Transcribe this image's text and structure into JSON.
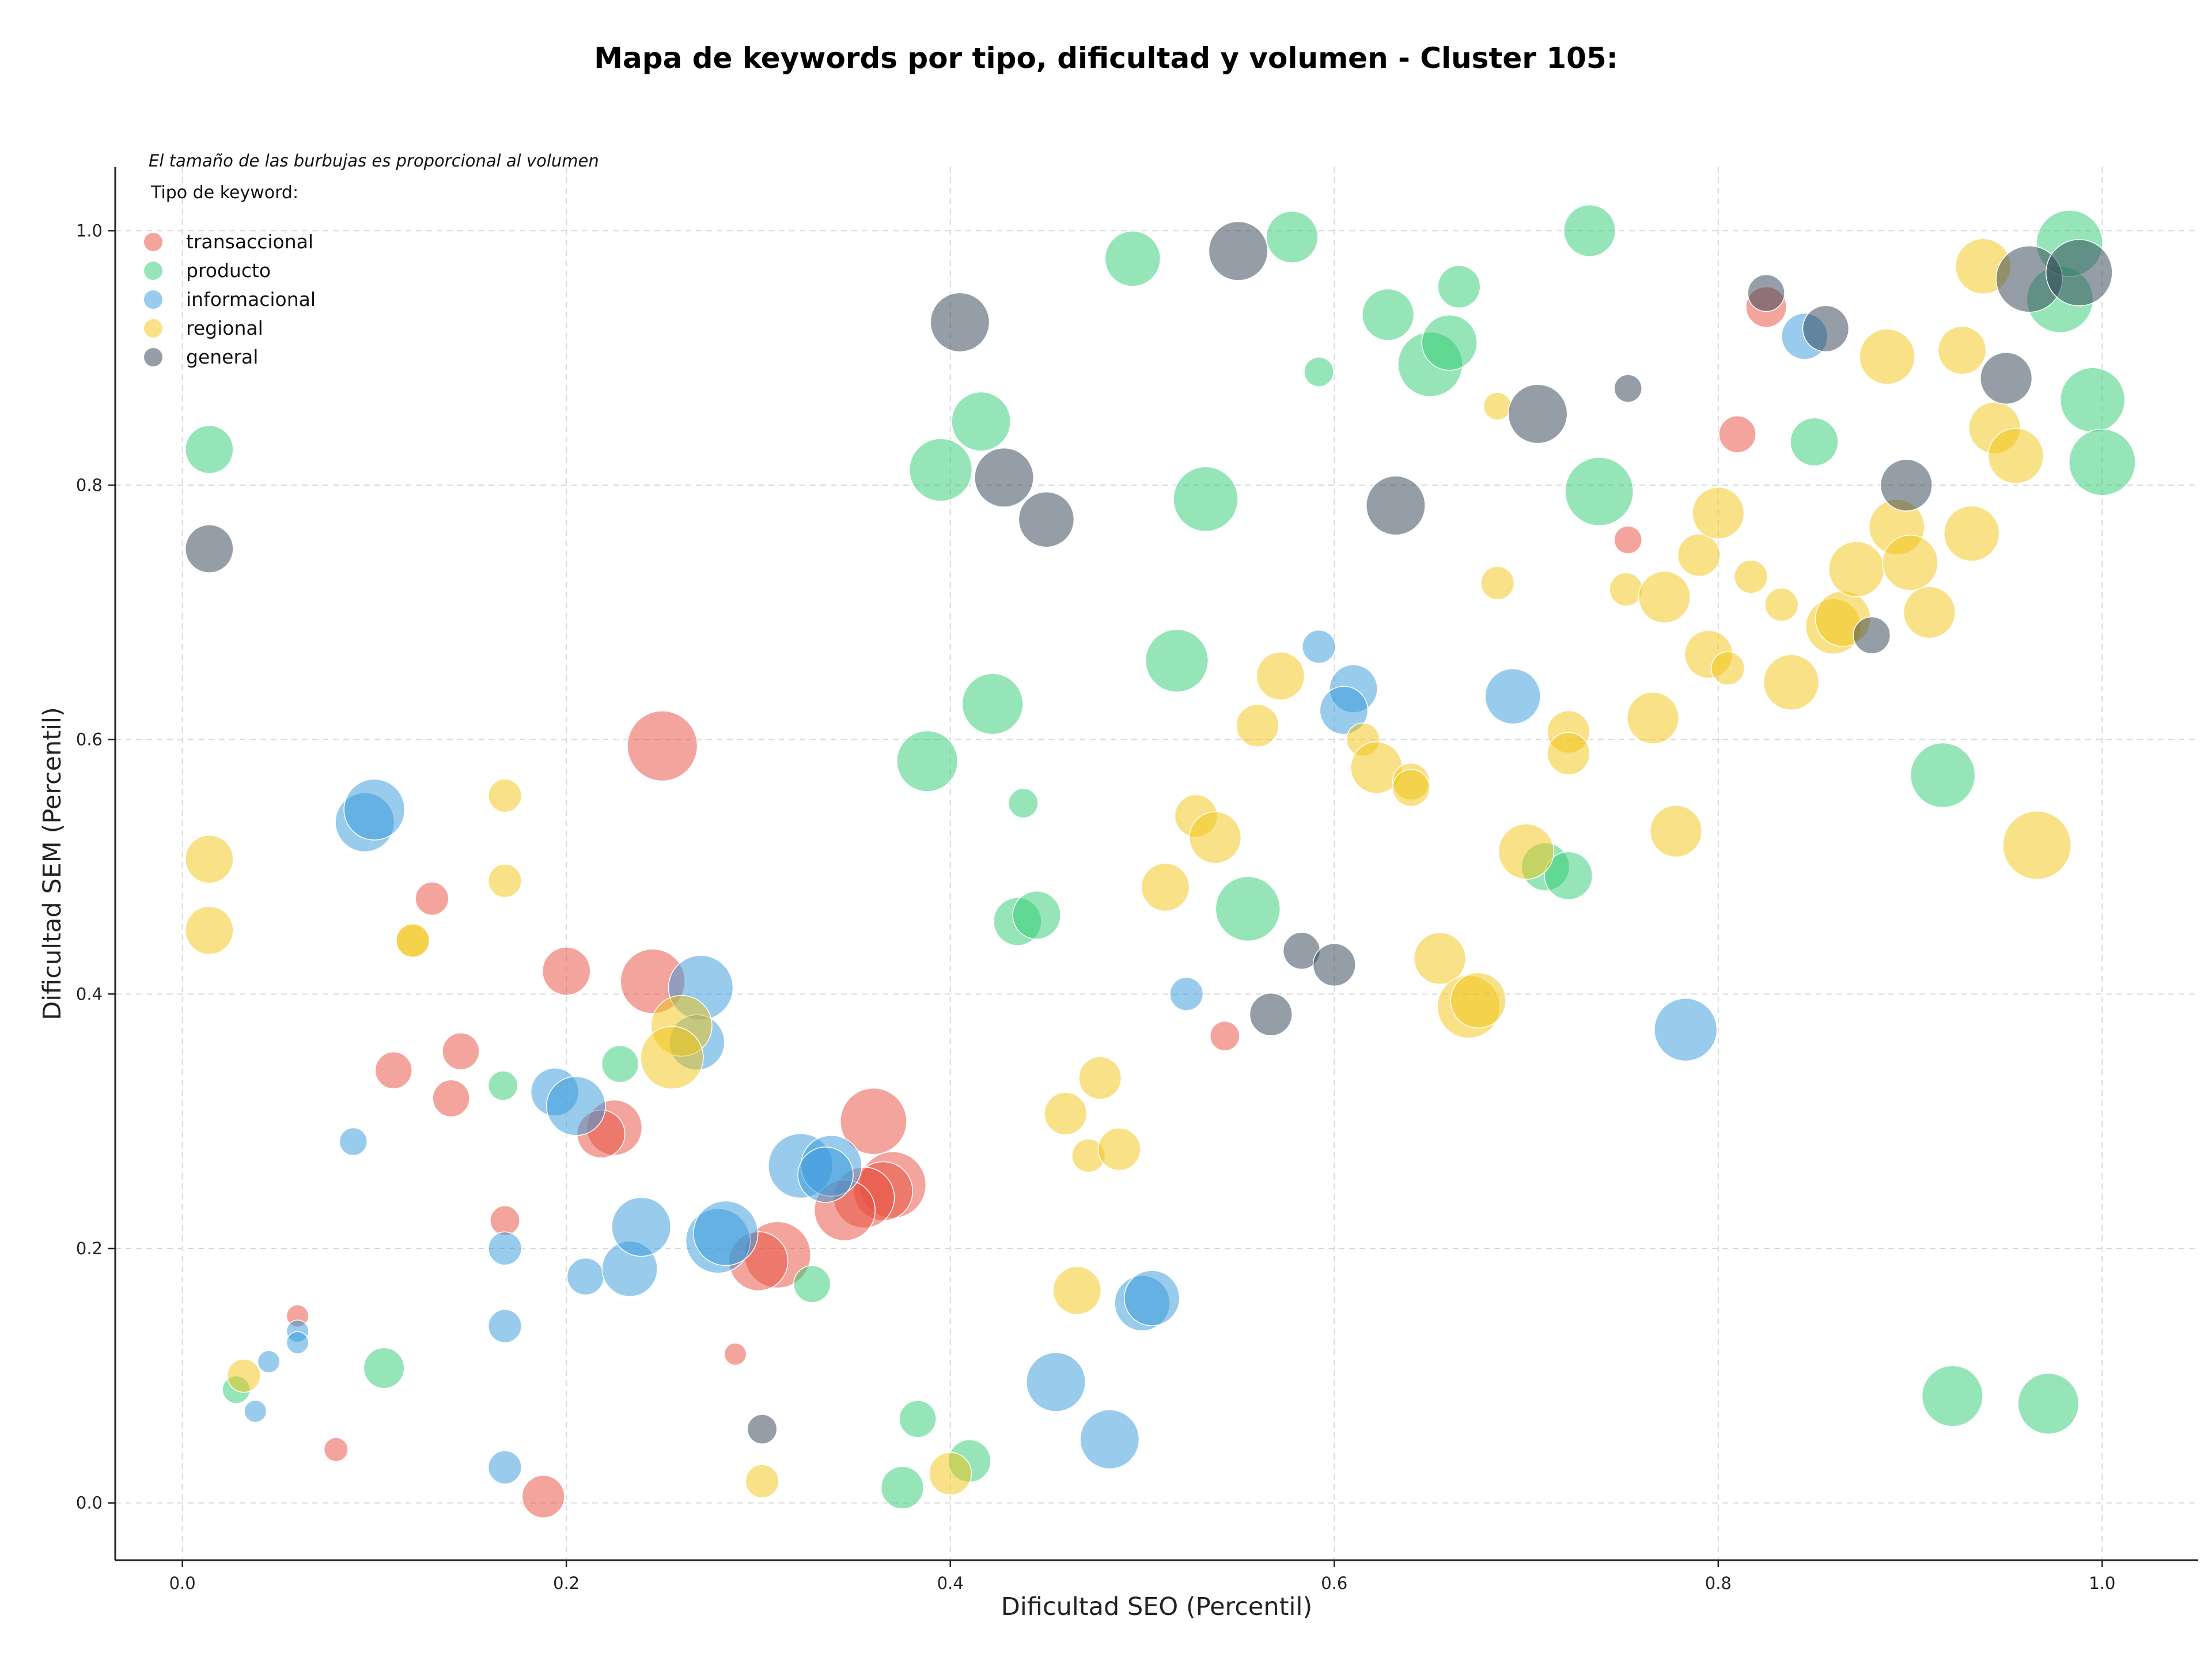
{
  "chart_data": {
    "type": "scatter",
    "title": "Mapa de keywords por tipo, dificultad y volumen - Cluster 105:",
    "xlabel": "Dificultad SEO (Percentil)",
    "ylabel": "Dificultad SEM (Percentil)",
    "xlim": [
      -0.035,
      1.05
    ],
    "ylim": [
      -0.045,
      1.05
    ],
    "xticks": [
      "0.0",
      "0.2",
      "0.4",
      "0.6",
      "0.8",
      "1.0"
    ],
    "yticks": [
      "0.0",
      "0.2",
      "0.4",
      "0.6",
      "0.8",
      "1.0"
    ],
    "grid": true,
    "annotation": "El tamaño de las burbujas es proporcional al volumen",
    "legend": {
      "title": "Tipo de keyword:",
      "placement": "top-left"
    },
    "series": [
      {
        "name": "transaccional",
        "color": "#e74c3c",
        "points": [
          [
            0.25,
            0.595,
            3.8
          ],
          [
            0.245,
            0.41,
            3.5
          ],
          [
            0.2,
            0.418,
            2.6
          ],
          [
            0.13,
            0.475,
            1.8
          ],
          [
            0.11,
            0.34,
            2.0
          ],
          [
            0.145,
            0.355,
            2.0
          ],
          [
            0.14,
            0.318,
            2.0
          ],
          [
            0.225,
            0.295,
            3.0
          ],
          [
            0.218,
            0.29,
            2.6
          ],
          [
            0.168,
            0.222,
            1.6
          ],
          [
            0.06,
            0.147,
            1.2
          ],
          [
            0.08,
            0.042,
            1.3
          ],
          [
            0.188,
            0.005,
            2.3
          ],
          [
            0.288,
            0.117,
            1.2
          ],
          [
            0.36,
            0.3,
            3.6
          ],
          [
            0.37,
            0.25,
            3.6
          ],
          [
            0.365,
            0.245,
            3.2
          ],
          [
            0.355,
            0.24,
            3.3
          ],
          [
            0.345,
            0.23,
            3.3
          ],
          [
            0.31,
            0.195,
            3.6
          ],
          [
            0.3,
            0.19,
            3.2
          ],
          [
            0.543,
            0.367,
            1.6
          ],
          [
            0.753,
            0.757,
            1.5
          ],
          [
            0.81,
            0.84,
            2.0
          ],
          [
            0.825,
            0.94,
            2.2
          ]
        ]
      },
      {
        "name": "producto",
        "color": "#2ecc71",
        "points": [
          [
            0.014,
            0.828,
            2.6
          ],
          [
            0.105,
            0.106,
            2.2
          ],
          [
            0.028,
            0.089,
            1.5
          ],
          [
            0.167,
            0.328,
            1.6
          ],
          [
            0.228,
            0.345,
            2.0
          ],
          [
            0.328,
            0.172,
            2.0
          ],
          [
            0.375,
            0.012,
            2.3
          ],
          [
            0.383,
            0.066,
            2.0
          ],
          [
            0.41,
            0.033,
            2.3
          ],
          [
            0.388,
            0.583,
            3.3
          ],
          [
            0.395,
            0.812,
            3.4
          ],
          [
            0.416,
            0.85,
            3.2
          ],
          [
            0.422,
            0.628,
            3.3
          ],
          [
            0.438,
            0.55,
            1.6
          ],
          [
            0.435,
            0.457,
            2.6
          ],
          [
            0.445,
            0.462,
            2.6
          ],
          [
            0.495,
            0.978,
            3.0
          ],
          [
            0.518,
            0.662,
            3.4
          ],
          [
            0.533,
            0.789,
            3.5
          ],
          [
            0.555,
            0.467,
            3.5
          ],
          [
            0.578,
            0.995,
            2.8
          ],
          [
            0.592,
            0.889,
            1.6
          ],
          [
            0.628,
            0.934,
            2.8
          ],
          [
            0.65,
            0.895,
            3.5
          ],
          [
            0.66,
            0.912,
            3.0
          ],
          [
            0.665,
            0.956,
            2.3
          ],
          [
            0.71,
            0.5,
            2.6
          ],
          [
            0.722,
            0.493,
            2.6
          ],
          [
            0.733,
            1.0,
            2.8
          ],
          [
            0.738,
            0.795,
            3.7
          ],
          [
            0.85,
            0.834,
            2.6
          ],
          [
            0.917,
            0.572,
            3.5
          ],
          [
            0.922,
            0.084,
            3.3
          ],
          [
            0.972,
            0.078,
            3.3
          ],
          [
            0.978,
            0.946,
            3.6
          ],
          [
            0.983,
            0.99,
            3.6
          ],
          [
            0.995,
            0.867,
            3.5
          ],
          [
            1.0,
            0.818,
            3.6
          ]
        ]
      },
      {
        "name": "informacional",
        "color": "#3498db",
        "points": [
          [
            0.095,
            0.535,
            3.2
          ],
          [
            0.1,
            0.545,
            3.3
          ],
          [
            0.089,
            0.284,
            1.5
          ],
          [
            0.06,
            0.135,
            1.2
          ],
          [
            0.06,
            0.126,
            1.2
          ],
          [
            0.045,
            0.111,
            1.2
          ],
          [
            0.038,
            0.072,
            1.2
          ],
          [
            0.168,
            0.2,
            1.8
          ],
          [
            0.168,
            0.139,
            1.8
          ],
          [
            0.168,
            0.028,
            1.8
          ],
          [
            0.194,
            0.323,
            2.6
          ],
          [
            0.205,
            0.312,
            3.2
          ],
          [
            0.21,
            0.178,
            2.0
          ],
          [
            0.233,
            0.184,
            3.0
          ],
          [
            0.239,
            0.217,
            3.2
          ],
          [
            0.27,
            0.405,
            3.5
          ],
          [
            0.268,
            0.362,
            3.0
          ],
          [
            0.279,
            0.206,
            3.5
          ],
          [
            0.283,
            0.212,
            3.5
          ],
          [
            0.322,
            0.265,
            3.5
          ],
          [
            0.338,
            0.265,
            3.3
          ],
          [
            0.335,
            0.258,
            3.0
          ],
          [
            0.455,
            0.095,
            3.2
          ],
          [
            0.483,
            0.05,
            3.2
          ],
          [
            0.5,
            0.157,
            3.0
          ],
          [
            0.505,
            0.161,
            3.0
          ],
          [
            0.523,
            0.4,
            1.8
          ],
          [
            0.592,
            0.673,
            1.8
          ],
          [
            0.61,
            0.64,
            2.6
          ],
          [
            0.605,
            0.623,
            2.6
          ],
          [
            0.693,
            0.634,
            3.0
          ],
          [
            0.783,
            0.372,
            3.4
          ],
          [
            0.845,
            0.917,
            2.5
          ]
        ]
      },
      {
        "name": "regional",
        "color": "#f1c40f",
        "points": [
          [
            0.014,
            0.506,
            2.6
          ],
          [
            0.014,
            0.45,
            2.6
          ],
          [
            0.032,
            0.1,
            1.8
          ],
          [
            0.12,
            0.442,
            1.8
          ],
          [
            0.12,
            0.442,
            1.8
          ],
          [
            0.168,
            0.556,
            1.8
          ],
          [
            0.168,
            0.489,
            1.8
          ],
          [
            0.26,
            0.375,
            3.3
          ],
          [
            0.255,
            0.35,
            3.4
          ],
          [
            0.302,
            0.017,
            1.8
          ],
          [
            0.4,
            0.023,
            2.3
          ],
          [
            0.46,
            0.306,
            2.3
          ],
          [
            0.466,
            0.167,
            2.6
          ],
          [
            0.472,
            0.273,
            1.8
          ],
          [
            0.478,
            0.334,
            2.3
          ],
          [
            0.488,
            0.278,
            2.3
          ],
          [
            0.512,
            0.484,
            2.6
          ],
          [
            0.528,
            0.54,
            2.3
          ],
          [
            0.538,
            0.523,
            2.8
          ],
          [
            0.56,
            0.611,
            2.3
          ],
          [
            0.572,
            0.65,
            2.6
          ],
          [
            0.615,
            0.6,
            1.8
          ],
          [
            0.622,
            0.578,
            2.8
          ],
          [
            0.64,
            0.567,
            2.0
          ],
          [
            0.64,
            0.562,
            2.0
          ],
          [
            0.655,
            0.428,
            2.8
          ],
          [
            0.67,
            0.39,
            3.4
          ],
          [
            0.675,
            0.395,
            3.0
          ],
          [
            0.685,
            0.862,
            1.5
          ],
          [
            0.685,
            0.723,
            1.8
          ],
          [
            0.7,
            0.512,
            3.0
          ],
          [
            0.722,
            0.606,
            2.3
          ],
          [
            0.722,
            0.589,
            2.3
          ],
          [
            0.752,
            0.718,
            1.8
          ],
          [
            0.766,
            0.617,
            2.8
          ],
          [
            0.772,
            0.712,
            2.8
          ],
          [
            0.778,
            0.528,
            2.8
          ],
          [
            0.79,
            0.745,
            2.3
          ],
          [
            0.795,
            0.667,
            2.6
          ],
          [
            0.8,
            0.778,
            2.8
          ],
          [
            0.805,
            0.656,
            1.8
          ],
          [
            0.817,
            0.728,
            1.8
          ],
          [
            0.833,
            0.706,
            1.8
          ],
          [
            0.838,
            0.645,
            3.0
          ],
          [
            0.86,
            0.689,
            3.0
          ],
          [
            0.865,
            0.695,
            3.0
          ],
          [
            0.872,
            0.734,
            3.0
          ],
          [
            0.888,
            0.901,
            3.0
          ],
          [
            0.893,
            0.767,
            3.0
          ],
          [
            0.9,
            0.739,
            3.0
          ],
          [
            0.91,
            0.7,
            2.8
          ],
          [
            0.927,
            0.906,
            2.6
          ],
          [
            0.932,
            0.762,
            3.0
          ],
          [
            0.938,
            0.972,
            3.0
          ],
          [
            0.944,
            0.845,
            2.8
          ],
          [
            0.955,
            0.823,
            3.0
          ],
          [
            0.966,
            0.517,
            3.7
          ]
        ]
      },
      {
        "name": "general",
        "color": "#2c3e50",
        "points": [
          [
            0.014,
            0.75,
            2.6
          ],
          [
            0.302,
            0.058,
            1.6
          ],
          [
            0.405,
            0.928,
            3.2
          ],
          [
            0.428,
            0.806,
            3.2
          ],
          [
            0.45,
            0.773,
            3.0
          ],
          [
            0.55,
            0.984,
            3.2
          ],
          [
            0.567,
            0.384,
            2.3
          ],
          [
            0.583,
            0.434,
            2.0
          ],
          [
            0.6,
            0.423,
            2.3
          ],
          [
            0.632,
            0.784,
            3.2
          ],
          [
            0.706,
            0.856,
            3.2
          ],
          [
            0.753,
            0.876,
            1.5
          ],
          [
            0.825,
            0.951,
            2.0
          ],
          [
            0.856,
            0.923,
            2.5
          ],
          [
            0.88,
            0.682,
            2.0
          ],
          [
            0.898,
            0.8,
            2.8
          ],
          [
            0.95,
            0.884,
            2.8
          ],
          [
            0.962,
            0.962,
            3.6
          ],
          [
            0.988,
            0.967,
            3.6
          ]
        ]
      }
    ]
  }
}
